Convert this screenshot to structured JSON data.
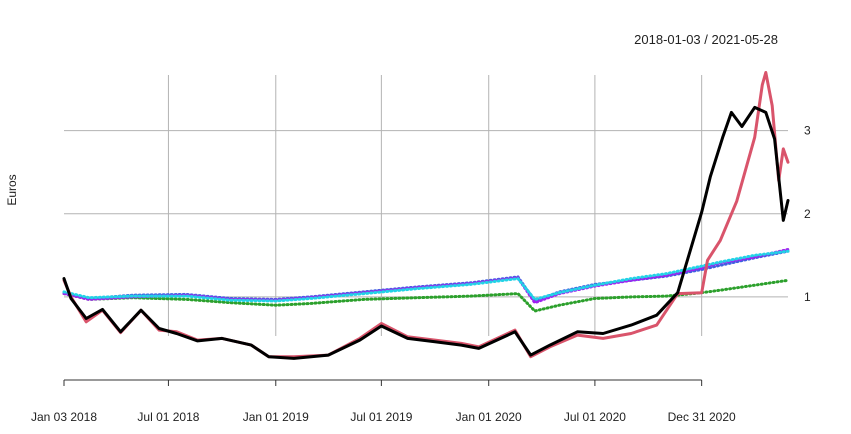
{
  "chart_data": {
    "type": "line",
    "date_range_label": "2018-01-03 / 2021-05-28",
    "ylabel": "Euros",
    "x_range": [
      "2018-01-03",
      "2021-05-28"
    ],
    "ylim": [
      0.0,
      3.85
    ],
    "y_axis_side": "right",
    "grid": true,
    "x_ticks": [
      {
        "date": "2018-01-03",
        "label": "Jan 03 2018"
      },
      {
        "date": "2018-07-01",
        "label": "Jul 01 2018"
      },
      {
        "date": "2019-01-01",
        "label": "Jan 01 2019"
      },
      {
        "date": "2019-07-01",
        "label": "Jul 01 2019"
      },
      {
        "date": "2020-01-01",
        "label": "Jan 01 2020"
      },
      {
        "date": "2020-07-01",
        "label": "Jul 01 2020"
      },
      {
        "date": "2020-12-31",
        "label": "Dec 31 2020"
      }
    ],
    "y_ticks": [
      {
        "value": 1,
        "label": "1"
      },
      {
        "value": 2,
        "label": "2"
      },
      {
        "value": 3,
        "label": "3"
      }
    ],
    "series": [
      {
        "color": "#2ca02c",
        "style": "dotted",
        "points": [
          [
            "2018-01-03",
            1.04
          ],
          [
            "2018-02-15",
            0.97
          ],
          [
            "2018-05-01",
            0.99
          ],
          [
            "2018-08-01",
            0.97
          ],
          [
            "2018-10-15",
            0.93
          ],
          [
            "2019-01-01",
            0.9
          ],
          [
            "2019-03-01",
            0.92
          ],
          [
            "2019-06-01",
            0.97
          ],
          [
            "2019-09-01",
            0.99
          ],
          [
            "2019-12-01",
            1.01
          ],
          [
            "2020-02-20",
            1.04
          ],
          [
            "2020-03-20",
            0.83
          ],
          [
            "2020-05-01",
            0.9
          ],
          [
            "2020-07-01",
            0.98
          ],
          [
            "2020-09-01",
            1.0
          ],
          [
            "2020-11-01",
            1.01
          ],
          [
            "2020-12-31",
            1.05
          ],
          [
            "2021-02-01",
            1.08
          ],
          [
            "2021-04-01",
            1.14
          ],
          [
            "2021-05-28",
            1.2
          ]
        ]
      },
      {
        "color": "#4060e0",
        "style": "dotted",
        "points": [
          [
            "2018-01-03",
            1.05
          ],
          [
            "2018-02-15",
            0.98
          ],
          [
            "2018-05-01",
            1.02
          ],
          [
            "2018-08-01",
            1.03
          ],
          [
            "2018-10-15",
            0.98
          ],
          [
            "2019-01-01",
            0.97
          ],
          [
            "2019-03-01",
            1.0
          ],
          [
            "2019-06-01",
            1.06
          ],
          [
            "2019-09-01",
            1.12
          ],
          [
            "2019-12-01",
            1.17
          ],
          [
            "2020-02-20",
            1.24
          ],
          [
            "2020-03-20",
            0.95
          ],
          [
            "2020-05-01",
            1.06
          ],
          [
            "2020-07-01",
            1.15
          ],
          [
            "2020-09-01",
            1.2
          ],
          [
            "2020-11-01",
            1.25
          ],
          [
            "2020-12-31",
            1.33
          ],
          [
            "2021-02-01",
            1.38
          ],
          [
            "2021-04-01",
            1.47
          ],
          [
            "2021-05-28",
            1.55
          ]
        ]
      },
      {
        "color": "#a020f0",
        "style": "dotted",
        "points": [
          [
            "2018-01-03",
            1.04
          ],
          [
            "2018-02-15",
            0.97
          ],
          [
            "2018-05-01",
            1.0
          ],
          [
            "2018-08-01",
            1.02
          ],
          [
            "2018-10-15",
            0.97
          ],
          [
            "2019-01-01",
            0.96
          ],
          [
            "2019-03-01",
            0.99
          ],
          [
            "2019-06-01",
            1.05
          ],
          [
            "2019-09-01",
            1.11
          ],
          [
            "2019-12-01",
            1.16
          ],
          [
            "2020-02-20",
            1.23
          ],
          [
            "2020-03-20",
            0.93
          ],
          [
            "2020-05-01",
            1.04
          ],
          [
            "2020-07-01",
            1.13
          ],
          [
            "2020-09-01",
            1.2
          ],
          [
            "2020-11-01",
            1.26
          ],
          [
            "2020-12-31",
            1.35
          ],
          [
            "2021-02-01",
            1.41
          ],
          [
            "2021-04-01",
            1.48
          ],
          [
            "2021-05-28",
            1.57
          ]
        ]
      },
      {
        "color": "#22d3e6",
        "style": "dotted",
        "points": [
          [
            "2018-01-03",
            1.06
          ],
          [
            "2018-02-15",
            0.99
          ],
          [
            "2018-05-01",
            1.01
          ],
          [
            "2018-08-01",
            1.01
          ],
          [
            "2018-10-15",
            0.96
          ],
          [
            "2019-01-01",
            0.95
          ],
          [
            "2019-03-01",
            0.98
          ],
          [
            "2019-06-01",
            1.04
          ],
          [
            "2019-09-01",
            1.1
          ],
          [
            "2019-12-01",
            1.15
          ],
          [
            "2020-02-20",
            1.22
          ],
          [
            "2020-03-20",
            0.97
          ],
          [
            "2020-05-01",
            1.05
          ],
          [
            "2020-07-01",
            1.14
          ],
          [
            "2020-09-01",
            1.22
          ],
          [
            "2020-11-01",
            1.28
          ],
          [
            "2020-12-31",
            1.37
          ],
          [
            "2021-02-01",
            1.42
          ],
          [
            "2021-04-01",
            1.5
          ],
          [
            "2021-05-28",
            1.55
          ]
        ]
      },
      {
        "color": "#d9546b",
        "style": "solid",
        "points": [
          [
            "2018-01-03",
            1.2
          ],
          [
            "2018-01-15",
            1.0
          ],
          [
            "2018-02-10",
            0.7
          ],
          [
            "2018-03-10",
            0.84
          ],
          [
            "2018-04-10",
            0.57
          ],
          [
            "2018-05-15",
            0.84
          ],
          [
            "2018-06-15",
            0.6
          ],
          [
            "2018-07-15",
            0.58
          ],
          [
            "2018-08-20",
            0.48
          ],
          [
            "2018-10-01",
            0.5
          ],
          [
            "2018-11-20",
            0.42
          ],
          [
            "2018-12-20",
            0.28
          ],
          [
            "2019-02-01",
            0.28
          ],
          [
            "2019-04-01",
            0.3
          ],
          [
            "2019-05-25",
            0.5
          ],
          [
            "2019-07-01",
            0.68
          ],
          [
            "2019-08-15",
            0.52
          ],
          [
            "2019-10-01",
            0.48
          ],
          [
            "2019-11-15",
            0.44
          ],
          [
            "2019-12-15",
            0.4
          ],
          [
            "2020-02-15",
            0.6
          ],
          [
            "2020-03-13",
            0.28
          ],
          [
            "2020-04-15",
            0.4
          ],
          [
            "2020-06-01",
            0.54
          ],
          [
            "2020-07-15",
            0.5
          ],
          [
            "2020-09-01",
            0.56
          ],
          [
            "2020-10-15",
            0.66
          ],
          [
            "2020-11-20",
            1.04
          ],
          [
            "2020-12-31",
            1.05
          ],
          [
            "2021-01-10",
            1.44
          ],
          [
            "2021-02-01",
            1.68
          ],
          [
            "2021-03-01",
            2.15
          ],
          [
            "2021-04-01",
            2.92
          ],
          [
            "2021-04-14",
            3.55
          ],
          [
            "2021-04-20",
            3.7
          ],
          [
            "2021-05-01",
            3.3
          ],
          [
            "2021-05-12",
            2.4
          ],
          [
            "2021-05-20",
            2.78
          ],
          [
            "2021-05-28",
            2.62
          ]
        ]
      },
      {
        "color": "#000000",
        "style": "solid",
        "points": [
          [
            "2018-01-03",
            1.22
          ],
          [
            "2018-01-15",
            0.98
          ],
          [
            "2018-02-10",
            0.74
          ],
          [
            "2018-03-10",
            0.85
          ],
          [
            "2018-04-10",
            0.58
          ],
          [
            "2018-05-15",
            0.84
          ],
          [
            "2018-06-15",
            0.62
          ],
          [
            "2018-07-15",
            0.56
          ],
          [
            "2018-08-20",
            0.47
          ],
          [
            "2018-10-01",
            0.5
          ],
          [
            "2018-11-20",
            0.42
          ],
          [
            "2018-12-20",
            0.28
          ],
          [
            "2019-02-01",
            0.26
          ],
          [
            "2019-04-01",
            0.3
          ],
          [
            "2019-05-25",
            0.48
          ],
          [
            "2019-07-01",
            0.65
          ],
          [
            "2019-08-15",
            0.5
          ],
          [
            "2019-10-01",
            0.46
          ],
          [
            "2019-11-15",
            0.42
          ],
          [
            "2019-12-15",
            0.38
          ],
          [
            "2020-02-15",
            0.58
          ],
          [
            "2020-03-13",
            0.3
          ],
          [
            "2020-04-15",
            0.42
          ],
          [
            "2020-06-01",
            0.58
          ],
          [
            "2020-07-15",
            0.56
          ],
          [
            "2020-09-01",
            0.66
          ],
          [
            "2020-10-15",
            0.78
          ],
          [
            "2020-11-20",
            1.05
          ],
          [
            "2020-12-31",
            2.02
          ],
          [
            "2021-01-15",
            2.45
          ],
          [
            "2021-02-05",
            2.92
          ],
          [
            "2021-02-20",
            3.22
          ],
          [
            "2021-03-10",
            3.05
          ],
          [
            "2021-04-01",
            3.28
          ],
          [
            "2021-04-20",
            3.22
          ],
          [
            "2021-05-05",
            2.9
          ],
          [
            "2021-05-20",
            1.92
          ],
          [
            "2021-05-28",
            2.16
          ]
        ]
      }
    ]
  }
}
